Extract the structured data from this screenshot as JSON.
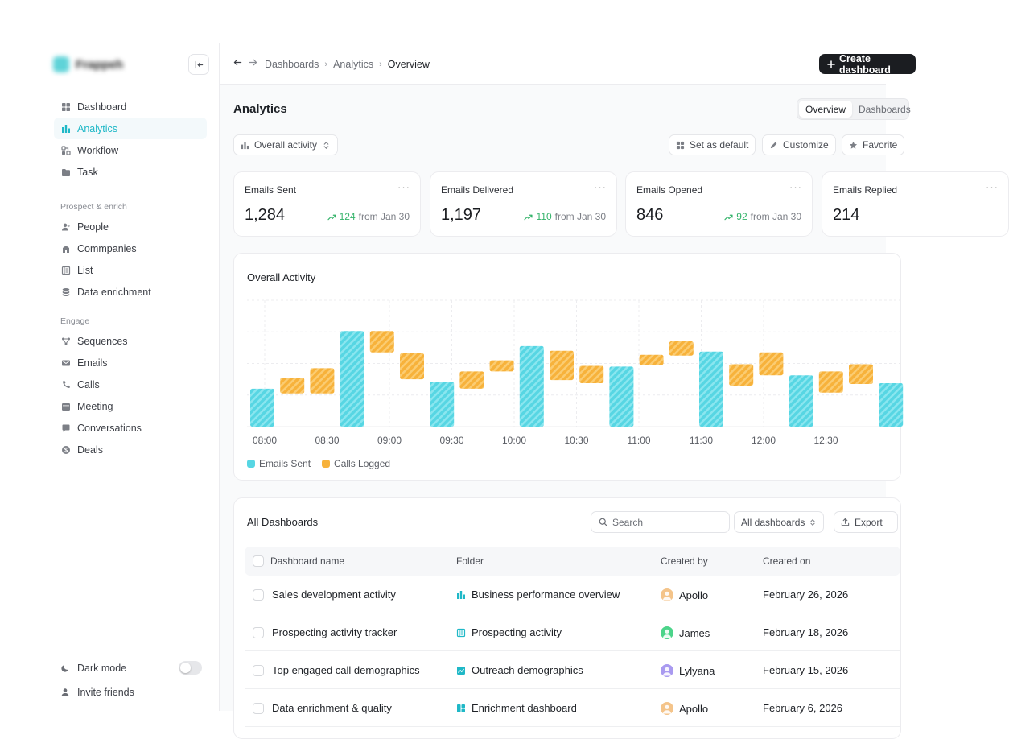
{
  "sidebar": {
    "brand_name": "Frappeh",
    "main_items": [
      {
        "label": "Dashboard",
        "icon": "dashboard-icon",
        "active": false
      },
      {
        "label": "Analytics",
        "icon": "analytics-icon",
        "active": true
      },
      {
        "label": "Workflow",
        "icon": "workflow-icon",
        "active": false
      },
      {
        "label": "Task",
        "icon": "folder-icon",
        "active": false
      }
    ],
    "section_prospect": "Prospect & enrich",
    "prospect_items": [
      {
        "label": "People",
        "icon": "people-icon"
      },
      {
        "label": "Commpanies",
        "icon": "building-icon"
      },
      {
        "label": "List",
        "icon": "list-icon"
      },
      {
        "label": "Data enrichment",
        "icon": "database-icon"
      }
    ],
    "section_engage": "Engage",
    "engage_items": [
      {
        "label": "Sequences",
        "icon": "sequences-icon"
      },
      {
        "label": "Emails",
        "icon": "mail-icon"
      },
      {
        "label": "Calls",
        "icon": "phone-icon"
      },
      {
        "label": "Meeting",
        "icon": "calendar-icon"
      },
      {
        "label": "Conversations",
        "icon": "chat-icon"
      },
      {
        "label": "Deals",
        "icon": "dollar-icon"
      }
    ],
    "dark_mode_label": "Dark mode",
    "dark_mode_on": false,
    "invite_label": "Invite friends"
  },
  "topbar": {
    "breadcrumb": [
      "Dashboards",
      "Analytics",
      "Overview"
    ],
    "create_label": "Create dashboard"
  },
  "page": {
    "title": "Analytics",
    "view_tabs": [
      "Overview",
      "Dashboards"
    ],
    "activity_select": "Overall activity",
    "set_default_label": "Set as default",
    "customize_label": "Customize",
    "favorite_label": "Favorite"
  },
  "stats": [
    {
      "label": "Emails Sent",
      "value": "1,284",
      "delta": "124",
      "from": "from Jan 30"
    },
    {
      "label": "Emails Delivered",
      "value": "1,197",
      "delta": "110",
      "from": "from Jan 30"
    },
    {
      "label": "Emails Opened",
      "value": "846",
      "delta": "92",
      "from": "from Jan 30"
    },
    {
      "label": "Emails Replied",
      "value": "214",
      "delta": "",
      "from": ""
    }
  ],
  "colors": {
    "accent": "#1fb8c7",
    "emails_sent": "#57d6e3",
    "calls_logged": "#f7b23b",
    "positive": "#34b36a"
  },
  "chart_data": {
    "type": "bar",
    "title": "Overall Activity",
    "x_ticks": [
      "08:00",
      "08:30",
      "09:00",
      "09:30",
      "10:00",
      "10:30",
      "11:00",
      "11:30",
      "12:00",
      "12:30"
    ],
    "series": [
      {
        "name": "Emails Sent",
        "bars": [
          {
            "slot": 0,
            "low": 0,
            "high": 48
          },
          {
            "slot": 3,
            "low": 0,
            "high": 121
          },
          {
            "slot": 6,
            "low": 0,
            "high": 57
          },
          {
            "slot": 9,
            "low": 0,
            "high": 102
          },
          {
            "slot": 12,
            "low": 0,
            "high": 76
          },
          {
            "slot": 15,
            "low": 0,
            "high": 95
          },
          {
            "slot": 18,
            "low": 0,
            "high": 65
          },
          {
            "slot": 21,
            "low": 0,
            "high": 55
          }
        ]
      },
      {
        "name": "Calls Logged",
        "bars": [
          {
            "slot": 1,
            "low": 42,
            "high": 62
          },
          {
            "slot": 2,
            "low": 42,
            "high": 74
          },
          {
            "slot": 4,
            "low": 94,
            "high": 121
          },
          {
            "slot": 5,
            "low": 60,
            "high": 93
          },
          {
            "slot": 7,
            "low": 48,
            "high": 70
          },
          {
            "slot": 8,
            "low": 70,
            "high": 84
          },
          {
            "slot": 10,
            "low": 59,
            "high": 96
          },
          {
            "slot": 11,
            "low": 55,
            "high": 77
          },
          {
            "slot": 13,
            "low": 78,
            "high": 91
          },
          {
            "slot": 14,
            "low": 90,
            "high": 108
          },
          {
            "slot": 16,
            "low": 52,
            "high": 79
          },
          {
            "slot": 17,
            "low": 65,
            "high": 94
          },
          {
            "slot": 19,
            "low": 43,
            "high": 70
          },
          {
            "slot": 20,
            "low": 54,
            "high": 79
          }
        ]
      }
    ],
    "ylim": [
      0,
      160
    ],
    "grid": true,
    "legend": "bottom-left"
  },
  "table": {
    "title": "All Dashboards",
    "search_placeholder": "Search",
    "filter_value": "All dashboards",
    "export_label": "Export",
    "columns": [
      "Dashboard name",
      "Folder",
      "Created by",
      "Created on"
    ],
    "rows": [
      {
        "name": "Sales development activity",
        "folder": "Business performance overview",
        "folder_icon": "bar-chart-icon",
        "created_by": "Apollo",
        "avatar_color": "#f4c48a",
        "created_on": "February 26, 2026"
      },
      {
        "name": "Prospecting activity tracker",
        "folder": "Prospecting activity",
        "folder_icon": "list-icon",
        "created_by": "James",
        "avatar_color": "#4cd48a",
        "created_on": "February 18, 2026"
      },
      {
        "name": "Top engaged call demographics",
        "folder": "Outreach demographics",
        "folder_icon": "trend-chart-icon",
        "created_by": "Lylyana",
        "avatar_color": "#a99af0",
        "created_on": "February 15, 2026"
      },
      {
        "name": "Data enrichment & quality",
        "folder": "Enrichment dashboard",
        "folder_icon": "grid-icon",
        "created_by": "Apollo",
        "avatar_color": "#f4c48a",
        "created_on": "February 6, 2026"
      }
    ]
  }
}
